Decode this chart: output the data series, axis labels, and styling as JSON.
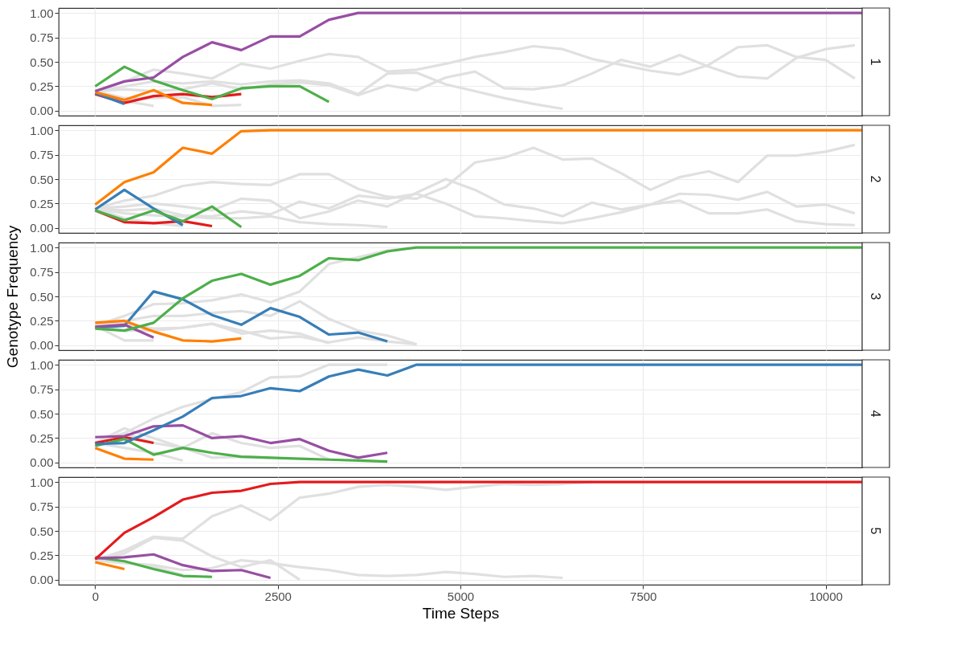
{
  "chart_data": [
    {
      "type": "line",
      "title": "1",
      "x": [
        0,
        400,
        800,
        1200,
        1600,
        2000,
        2400,
        2800,
        3200,
        3600,
        4000,
        4400,
        4800,
        5200,
        5600,
        6000,
        6400,
        6800,
        7200,
        7600,
        8000,
        8400,
        8800,
        9200,
        9600,
        10000,
        10400,
        10500
      ],
      "xlim": [
        -500,
        10500
      ],
      "xticks": [
        0,
        2500,
        5000,
        7500,
        10000
      ],
      "ylim": [
        -0.05,
        1.05
      ],
      "yticks": [
        {
          "value": 0,
          "label": "0.00"
        },
        {
          "value": 0.25,
          "label": "0.25"
        },
        {
          "value": 0.5,
          "label": "0.50"
        },
        {
          "value": 0.75,
          "label": "0.75"
        },
        {
          "value": 1,
          "label": "1.00"
        }
      ],
      "grid": true,
      "tick_labels": "y",
      "series": [
        {
          "color": "#e0e0e0",
          "values": [
            0.2,
            0.3,
            0.42,
            0.38,
            0.33,
            0.48,
            0.43,
            0.51,
            0.58,
            0.55,
            0.4,
            0.42,
            0.48,
            0.55,
            0.6,
            0.66,
            0.63,
            0.53,
            0.47,
            0.41,
            0.37,
            0.47,
            0.65,
            0.67,
            0.55,
            0.52,
            0.33,
            null
          ]
        },
        {
          "color": "#e0e0e0",
          "values": [
            0.2,
            0.22,
            0.2,
            0.22,
            0.28,
            0.22,
            0.27,
            0.29,
            0.26,
            0.16,
            0.26,
            0.21,
            0.34,
            0.4,
            0.23,
            0.22,
            0.26,
            0.38,
            0.52,
            0.45,
            0.57,
            0.45,
            0.35,
            0.33,
            0.54,
            0.63,
            0.67,
            null
          ]
        },
        {
          "color": "#e0e0e0",
          "values": [
            0.2,
            0.25,
            0.3,
            0.28,
            0.3,
            0.27,
            0.3,
            0.31,
            0.28,
            0.17,
            0.38,
            0.39,
            0.27,
            0.2,
            0.13,
            0.07,
            0.02,
            null,
            null,
            null,
            null,
            null,
            null,
            null,
            null,
            null,
            null,
            null
          ]
        },
        {
          "color": "#e0e0e0",
          "values": [
            0.18,
            0.1,
            0.05,
            null,
            null,
            null,
            null,
            null,
            null,
            null,
            null,
            null,
            null,
            null,
            null,
            null,
            null,
            null,
            null,
            null,
            null,
            null,
            null,
            null,
            null,
            null,
            null,
            null
          ]
        },
        {
          "color": "#e0e0e0",
          "values": [
            0.2,
            0.13,
            0.13,
            0.14,
            0.05,
            0.06,
            null,
            null,
            null,
            null,
            null,
            null,
            null,
            null,
            null,
            null,
            null,
            null,
            null,
            null,
            null,
            null,
            null,
            null,
            null,
            null,
            null,
            null
          ]
        },
        {
          "color": "#e41a1c",
          "values": [
            0.17,
            0.08,
            0.15,
            0.17,
            0.14,
            0.17,
            null,
            null,
            null,
            null,
            null,
            null,
            null,
            null,
            null,
            null,
            null,
            null,
            null,
            null,
            null,
            null,
            null,
            null,
            null,
            null,
            null,
            null
          ]
        },
        {
          "color": "#377eb8",
          "values": [
            0.18,
            0.07,
            null,
            null,
            null,
            null,
            null,
            null,
            null,
            null,
            null,
            null,
            null,
            null,
            null,
            null,
            null,
            null,
            null,
            null,
            null,
            null,
            null,
            null,
            null,
            null,
            null,
            null
          ]
        },
        {
          "color": "#ff7f00",
          "values": [
            0.19,
            0.11,
            0.21,
            0.08,
            0.06,
            null,
            null,
            null,
            null,
            null,
            null,
            null,
            null,
            null,
            null,
            null,
            null,
            null,
            null,
            null,
            null,
            null,
            null,
            null,
            null,
            null,
            null,
            null
          ]
        },
        {
          "color": "#4daf4a",
          "values": [
            0.25,
            0.45,
            0.31,
            0.21,
            0.12,
            0.23,
            0.25,
            0.25,
            0.09,
            null,
            null,
            null,
            null,
            null,
            null,
            null,
            null,
            null,
            null,
            null,
            null,
            null,
            null,
            null,
            null,
            null,
            null,
            null
          ]
        },
        {
          "color": "#984ea3",
          "values": [
            0.2,
            0.3,
            0.34,
            0.55,
            0.7,
            0.62,
            0.76,
            0.76,
            0.93,
            1,
            1,
            1,
            1,
            1,
            1,
            1,
            1,
            1,
            1,
            1,
            1,
            1,
            1,
            1,
            1,
            1,
            1,
            1
          ]
        }
      ]
    },
    {
      "type": "line",
      "title": "2",
      "x": [
        0,
        400,
        800,
        1200,
        1600,
        2000,
        2400,
        2800,
        3200,
        3600,
        4000,
        4400,
        4800,
        5200,
        5600,
        6000,
        6400,
        6800,
        7200,
        7600,
        8000,
        8400,
        8800,
        9200,
        9600,
        10000,
        10400,
        10500
      ],
      "xlim": [
        -500,
        10500
      ],
      "xticks": [
        0,
        2500,
        5000,
        7500,
        10000
      ],
      "ylim": [
        -0.05,
        1.05
      ],
      "yticks": [
        {
          "value": 0,
          "label": "0.00"
        },
        {
          "value": 0.25,
          "label": "0.25"
        },
        {
          "value": 0.5,
          "label": "0.50"
        },
        {
          "value": 0.75,
          "label": "0.75"
        },
        {
          "value": 1,
          "label": "1.00"
        }
      ],
      "grid": true,
      "tick_labels": "y",
      "series": [
        {
          "color": "#e0e0e0",
          "values": [
            0.2,
            0.28,
            0.33,
            0.43,
            0.47,
            0.45,
            0.44,
            0.55,
            0.55,
            0.4,
            0.32,
            0.3,
            0.42,
            0.67,
            0.72,
            0.82,
            0.7,
            0.71,
            0.56,
            0.39,
            0.52,
            0.58,
            0.47,
            0.74,
            0.74,
            0.78,
            0.85,
            null
          ]
        },
        {
          "color": "#e0e0e0",
          "values": [
            0.2,
            0.22,
            0.25,
            0.22,
            0.18,
            0.3,
            0.28,
            0.1,
            0.17,
            0.28,
            0.22,
            0.36,
            0.5,
            0.39,
            0.24,
            0.2,
            0.12,
            0.26,
            0.19,
            0.24,
            0.28,
            0.15,
            0.15,
            0.19,
            0.07,
            0.04,
            0.03,
            null
          ]
        },
        {
          "color": "#e0e0e0",
          "values": [
            0.2,
            0.18,
            0.2,
            0.13,
            0.12,
            0.17,
            0.14,
            0.27,
            0.2,
            0.33,
            0.3,
            0.35,
            0.25,
            0.12,
            0.1,
            0.07,
            0.05,
            0.1,
            0.16,
            0.24,
            0.35,
            0.34,
            0.29,
            0.37,
            0.22,
            0.24,
            0.15,
            null
          ]
        },
        {
          "color": "#e0e0e0",
          "values": [
            0.2,
            0.1,
            0.05,
            0.02,
            null,
            null,
            null,
            null,
            null,
            null,
            null,
            null,
            null,
            null,
            null,
            null,
            null,
            null,
            null,
            null,
            null,
            null,
            null,
            null,
            null,
            null,
            null,
            null
          ]
        },
        {
          "color": "#e0e0e0",
          "values": [
            0.2,
            0.15,
            0.13,
            0.12,
            0.1,
            0.1,
            0.12,
            0.06,
            0.04,
            0.03,
            0.01,
            null,
            null,
            null,
            null,
            null,
            null,
            null,
            null,
            null,
            null,
            null,
            null,
            null,
            null,
            null,
            null,
            null
          ]
        },
        {
          "color": "#e41a1c",
          "values": [
            0.18,
            0.06,
            0.05,
            0.07,
            0.02,
            null,
            null,
            null,
            null,
            null,
            null,
            null,
            null,
            null,
            null,
            null,
            null,
            null,
            null,
            null,
            null,
            null,
            null,
            null,
            null,
            null,
            null,
            null
          ]
        },
        {
          "color": "#377eb8",
          "values": [
            0.19,
            0.39,
            0.2,
            0.03,
            null,
            null,
            null,
            null,
            null,
            null,
            null,
            null,
            null,
            null,
            null,
            null,
            null,
            null,
            null,
            null,
            null,
            null,
            null,
            null,
            null,
            null,
            null,
            null
          ]
        },
        {
          "color": "#4daf4a",
          "values": [
            0.18,
            0.08,
            0.18,
            0.07,
            0.22,
            0.01,
            null,
            null,
            null,
            null,
            null,
            null,
            null,
            null,
            null,
            null,
            null,
            null,
            null,
            null,
            null,
            null,
            null,
            null,
            null,
            null,
            null,
            null
          ]
        },
        {
          "color": "#ff7f00",
          "values": [
            0.24,
            0.47,
            0.57,
            0.82,
            0.76,
            0.99,
            1,
            1,
            1,
            1,
            1,
            1,
            1,
            1,
            1,
            1,
            1,
            1,
            1,
            1,
            1,
            1,
            1,
            1,
            1,
            1,
            1,
            1
          ]
        }
      ]
    },
    {
      "type": "line",
      "title": "3",
      "ylabel": "Genotype Frequency",
      "x": [
        0,
        400,
        800,
        1200,
        1600,
        2000,
        2400,
        2800,
        3200,
        3600,
        4000,
        4400,
        4800,
        5200,
        5600,
        6000,
        6400,
        6800,
        7200,
        7600,
        8000,
        8400,
        8800,
        9200,
        9600,
        10000,
        10400,
        10500
      ],
      "xlim": [
        -500,
        10500
      ],
      "xticks": [
        0,
        2500,
        5000,
        7500,
        10000
      ],
      "ylim": [
        -0.05,
        1.05
      ],
      "yticks": [
        {
          "value": 0,
          "label": "0.00"
        },
        {
          "value": 0.25,
          "label": "0.25"
        },
        {
          "value": 0.5,
          "label": "0.50"
        },
        {
          "value": 0.75,
          "label": "0.75"
        },
        {
          "value": 1,
          "label": "1.00"
        }
      ],
      "grid": true,
      "tick_labels": "y",
      "series": [
        {
          "color": "#e0e0e0",
          "values": [
            0.2,
            0.3,
            0.42,
            0.43,
            0.46,
            0.52,
            0.44,
            0.55,
            0.83,
            0.9,
            0.97,
            1,
            null,
            null,
            null,
            null,
            null,
            null,
            null,
            null,
            null,
            null,
            null,
            null,
            null,
            null,
            null,
            null
          ]
        },
        {
          "color": "#e0e0e0",
          "values": [
            0.2,
            0.25,
            0.3,
            0.3,
            0.33,
            0.35,
            0.3,
            0.45,
            0.27,
            0.15,
            0.1,
            0.01,
            null,
            null,
            null,
            null,
            null,
            null,
            null,
            null,
            null,
            null,
            null,
            null,
            null,
            null,
            null,
            null
          ]
        },
        {
          "color": "#e0e0e0",
          "values": [
            0.2,
            0.05,
            0.05,
            null,
            null,
            null,
            null,
            null,
            null,
            null,
            null,
            null,
            null,
            null,
            null,
            null,
            null,
            null,
            null,
            null,
            null,
            null,
            null,
            null,
            null,
            null,
            null,
            null
          ]
        },
        {
          "color": "#e0e0e0",
          "values": [
            0.2,
            0.22,
            0.17,
            0.18,
            0.22,
            0.15,
            0.07,
            0.09,
            0.03,
            0.08,
            0.04,
            0.01,
            null,
            null,
            null,
            null,
            null,
            null,
            null,
            null,
            null,
            null,
            null,
            null,
            null,
            null,
            null,
            null
          ]
        },
        {
          "color": "#e0e0e0",
          "values": [
            0.2,
            0.15,
            0.15,
            0.18,
            0.22,
            0.12,
            0.15,
            0.12,
            0.02,
            null,
            null,
            null,
            null,
            null,
            null,
            null,
            null,
            null,
            null,
            null,
            null,
            null,
            null,
            null,
            null,
            null,
            null,
            null
          ]
        },
        {
          "color": "#377eb8",
          "values": [
            0.18,
            0.2,
            0.55,
            0.47,
            0.31,
            0.21,
            0.38,
            0.29,
            0.11,
            0.13,
            0.04,
            null,
            null,
            null,
            null,
            null,
            null,
            null,
            null,
            null,
            null,
            null,
            null,
            null,
            null,
            null,
            null,
            null
          ]
        },
        {
          "color": "#ff7f00",
          "values": [
            0.23,
            0.25,
            0.14,
            0.05,
            0.04,
            0.07,
            null,
            null,
            null,
            null,
            null,
            null,
            null,
            null,
            null,
            null,
            null,
            null,
            null,
            null,
            null,
            null,
            null,
            null,
            null,
            null,
            null,
            null
          ]
        },
        {
          "color": "#984ea3",
          "values": [
            0.19,
            0.21,
            0.08,
            null,
            null,
            null,
            null,
            null,
            null,
            null,
            null,
            null,
            null,
            null,
            null,
            null,
            null,
            null,
            null,
            null,
            null,
            null,
            null,
            null,
            null,
            null,
            null,
            null
          ]
        },
        {
          "color": "#4daf4a",
          "values": [
            0.17,
            0.15,
            0.23,
            0.48,
            0.66,
            0.73,
            0.62,
            0.71,
            0.89,
            0.87,
            0.96,
            1,
            1,
            1,
            1,
            1,
            1,
            1,
            1,
            1,
            1,
            1,
            1,
            1,
            1,
            1,
            1,
            1
          ]
        }
      ]
    },
    {
      "type": "line",
      "title": "4",
      "x": [
        0,
        400,
        800,
        1200,
        1600,
        2000,
        2400,
        2800,
        3200,
        3600,
        4000,
        4400,
        4800,
        5200,
        5600,
        6000,
        6400,
        6800,
        7200,
        7600,
        8000,
        8400,
        8800,
        9200,
        9600,
        10000,
        10400,
        10500
      ],
      "xlim": [
        -500,
        10500
      ],
      "xticks": [
        0,
        2500,
        5000,
        7500,
        10000
      ],
      "ylim": [
        -0.05,
        1.05
      ],
      "yticks": [
        {
          "value": 0,
          "label": "0.00"
        },
        {
          "value": 0.25,
          "label": "0.25"
        },
        {
          "value": 0.5,
          "label": "0.50"
        },
        {
          "value": 0.75,
          "label": "0.75"
        },
        {
          "value": 1,
          "label": "1.00"
        }
      ],
      "grid": true,
      "tick_labels": "y",
      "series": [
        {
          "color": "#e0e0e0",
          "values": [
            0.2,
            0.3,
            0.45,
            0.57,
            0.65,
            0.72,
            0.87,
            0.88,
            1,
            1,
            1,
            null,
            null,
            null,
            null,
            null,
            null,
            null,
            null,
            null,
            null,
            null,
            null,
            null,
            null,
            null,
            null,
            null
          ]
        },
        {
          "color": "#e0e0e0",
          "values": [
            0.2,
            0.35,
            0.25,
            0.15,
            0.05,
            0.06,
            0.05,
            null,
            null,
            null,
            null,
            null,
            null,
            null,
            null,
            null,
            null,
            null,
            null,
            null,
            null,
            null,
            null,
            null,
            null,
            null,
            null,
            null
          ]
        },
        {
          "color": "#e0e0e0",
          "values": [
            0.2,
            0.3,
            0.2,
            0.15,
            0.3,
            0.2,
            0.15,
            0.17,
            0.03,
            null,
            null,
            null,
            null,
            null,
            null,
            null,
            null,
            null,
            null,
            null,
            null,
            null,
            null,
            null,
            null,
            null,
            null,
            null
          ]
        },
        {
          "color": "#e0e0e0",
          "values": [
            0.2,
            0.15,
            0.1,
            0.02,
            null,
            null,
            null,
            null,
            null,
            null,
            null,
            null,
            null,
            null,
            null,
            null,
            null,
            null,
            null,
            null,
            null,
            null,
            null,
            null,
            null,
            null,
            null,
            null
          ]
        },
        {
          "color": "#e41a1c",
          "values": [
            0.2,
            0.26,
            0.2,
            null,
            null,
            null,
            null,
            null,
            null,
            null,
            null,
            null,
            null,
            null,
            null,
            null,
            null,
            null,
            null,
            null,
            null,
            null,
            null,
            null,
            null,
            null,
            null,
            null
          ]
        },
        {
          "color": "#ff7f00",
          "values": [
            0.15,
            0.04,
            0.03,
            null,
            null,
            null,
            null,
            null,
            null,
            null,
            null,
            null,
            null,
            null,
            null,
            null,
            null,
            null,
            null,
            null,
            null,
            null,
            null,
            null,
            null,
            null,
            null,
            null
          ]
        },
        {
          "color": "#4daf4a",
          "values": [
            0.17,
            0.24,
            0.08,
            0.15,
            0.1,
            0.06,
            0.05,
            0.04,
            0.03,
            0.02,
            0.01,
            null,
            null,
            null,
            null,
            null,
            null,
            null,
            null,
            null,
            null,
            null,
            null,
            null,
            null,
            null,
            null,
            null
          ]
        },
        {
          "color": "#984ea3",
          "values": [
            0.26,
            0.27,
            0.37,
            0.38,
            0.25,
            0.27,
            0.2,
            0.24,
            0.12,
            0.05,
            0.1,
            null,
            null,
            null,
            null,
            null,
            null,
            null,
            null,
            null,
            null,
            null,
            null,
            null,
            null,
            null,
            null,
            null
          ]
        },
        {
          "color": "#377eb8",
          "values": [
            0.19,
            0.2,
            0.33,
            0.47,
            0.66,
            0.68,
            0.76,
            0.73,
            0.88,
            0.95,
            0.89,
            1,
            1,
            1,
            1,
            1,
            1,
            1,
            1,
            1,
            1,
            1,
            1,
            1,
            1,
            1,
            1,
            1
          ]
        }
      ]
    },
    {
      "type": "line",
      "title": "5",
      "xlabel": "Time Steps",
      "x": [
        0,
        400,
        800,
        1200,
        1600,
        2000,
        2400,
        2800,
        3200,
        3600,
        4000,
        4400,
        4800,
        5200,
        5600,
        6000,
        6400,
        6800,
        7200,
        7600,
        8000,
        8400,
        8800,
        9200,
        9600,
        10000,
        10400,
        10500
      ],
      "xlim": [
        -500,
        10500
      ],
      "xticks": [
        0,
        2500,
        5000,
        7500,
        10000
      ],
      "ylim": [
        -0.05,
        1.05
      ],
      "yticks": [
        {
          "value": 0,
          "label": "0.00"
        },
        {
          "value": 0.25,
          "label": "0.25"
        },
        {
          "value": 0.5,
          "label": "0.50"
        },
        {
          "value": 0.75,
          "label": "0.75"
        },
        {
          "value": 1,
          "label": "1.00"
        }
      ],
      "grid": true,
      "series": [
        {
          "color": "#e0e0e0",
          "values": [
            0.2,
            0.3,
            0.44,
            0.42,
            0.65,
            0.76,
            0.61,
            0.84,
            0.88,
            0.95,
            0.97,
            0.95,
            0.92,
            0.95,
            0.98,
            0.97,
            0.98,
            1,
            null,
            null,
            null,
            null,
            null,
            null,
            null,
            null,
            null,
            null
          ]
        },
        {
          "color": "#e0e0e0",
          "values": [
            0.2,
            0.27,
            0.43,
            0.4,
            0.24,
            0.13,
            0.2,
            0.0,
            null,
            null,
            null,
            null,
            null,
            null,
            null,
            null,
            null,
            null,
            null,
            null,
            null,
            null,
            null,
            null,
            null,
            null,
            null,
            null
          ]
        },
        {
          "color": "#e0e0e0",
          "values": [
            0.2,
            0.17,
            0.15,
            0.1,
            0.12,
            0.2,
            0.17,
            0.13,
            0.1,
            0.05,
            0.04,
            0.05,
            0.08,
            0.06,
            0.03,
            0.04,
            0.02,
            null,
            null,
            null,
            null,
            null,
            null,
            null,
            null,
            null,
            null,
            null
          ]
        },
        {
          "color": "#e0e0e0",
          "values": [
            0.2,
            0.18,
            0.13,
            0.05,
            null,
            null,
            null,
            null,
            null,
            null,
            null,
            null,
            null,
            null,
            null,
            null,
            null,
            null,
            null,
            null,
            null,
            null,
            null,
            null,
            null,
            null,
            null,
            null
          ]
        },
        {
          "color": "#ff7f00",
          "values": [
            0.18,
            0.11,
            null,
            null,
            null,
            null,
            null,
            null,
            null,
            null,
            null,
            null,
            null,
            null,
            null,
            null,
            null,
            null,
            null,
            null,
            null,
            null,
            null,
            null,
            null,
            null,
            null,
            null
          ]
        },
        {
          "color": "#4daf4a",
          "values": [
            0.23,
            0.19,
            0.11,
            0.04,
            0.03,
            null,
            null,
            null,
            null,
            null,
            null,
            null,
            null,
            null,
            null,
            null,
            null,
            null,
            null,
            null,
            null,
            null,
            null,
            null,
            null,
            null,
            null,
            null
          ]
        },
        {
          "color": "#984ea3",
          "values": [
            0.22,
            0.23,
            0.26,
            0.15,
            0.09,
            0.1,
            0.02,
            null,
            null,
            null,
            null,
            null,
            null,
            null,
            null,
            null,
            null,
            null,
            null,
            null,
            null,
            null,
            null,
            null,
            null,
            null,
            null,
            null
          ]
        },
        {
          "color": "#e41a1c",
          "values": [
            0.21,
            0.48,
            0.64,
            0.82,
            0.89,
            0.91,
            0.98,
            1,
            1,
            1,
            1,
            1,
            1,
            1,
            1,
            1,
            1,
            1,
            1,
            1,
            1,
            1,
            1,
            1,
            1,
            1,
            1,
            1
          ]
        }
      ]
    }
  ]
}
